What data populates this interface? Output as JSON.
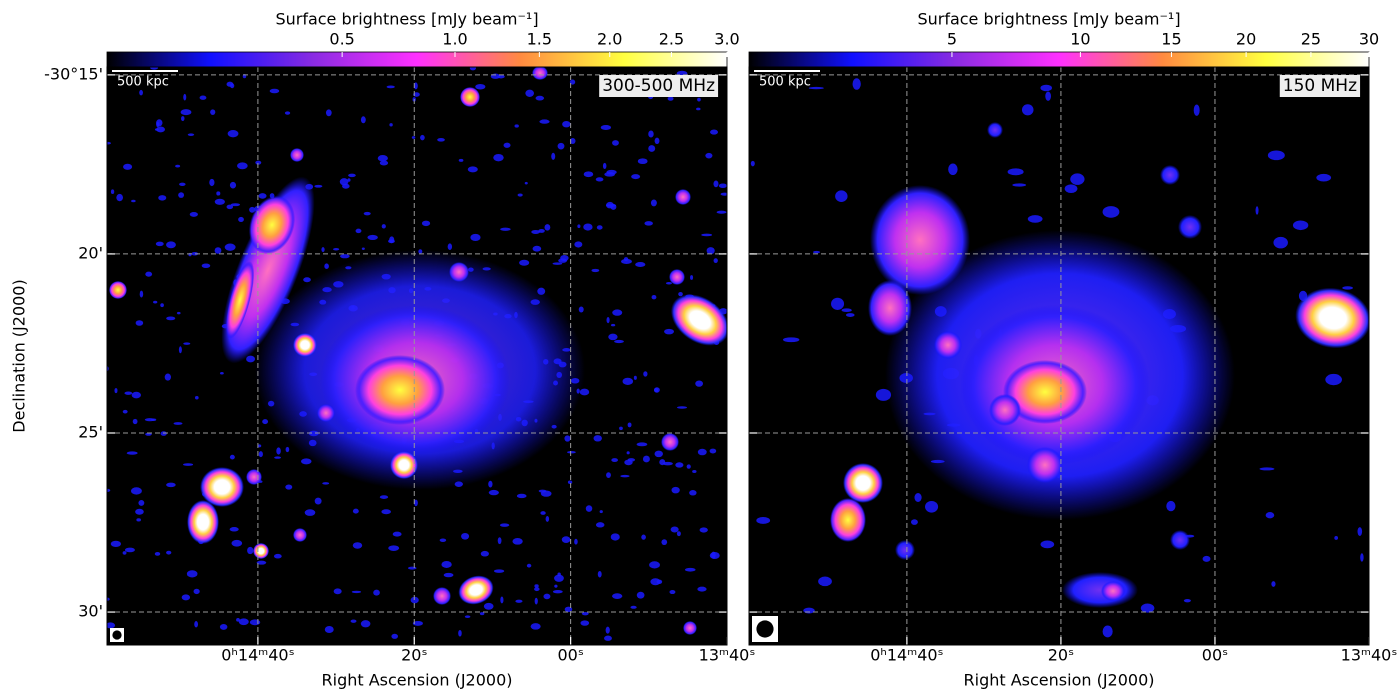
{
  "chart_data": [
    {
      "type": "image",
      "title": "Surface brightness [mJy beam⁻¹]",
      "annotation": "300-500 MHz",
      "scalebar": "500 kpc",
      "colormap": [
        "#000000",
        "#1010ff",
        "#8a2be2",
        "#ff30ff",
        "#ff8a40",
        "#ffff40",
        "#ffffff"
      ],
      "stretch": "sqrt",
      "clim": [
        0.08,
        3
      ],
      "cticks": [
        {
          "value": 0.5,
          "label": "0.5"
        },
        {
          "value": 1,
          "label": "1.0"
        },
        {
          "value": 1.5,
          "label": "1.5"
        },
        {
          "value": 2,
          "label": "2.0"
        },
        {
          "value": 2.5,
          "label": "2.5"
        },
        {
          "value": 3,
          "label": "3.0"
        }
      ],
      "xlabel": "Right Ascension (J2000)",
      "xlim": [
        899.3,
        820
      ],
      "xticks": [
        {
          "value": 880,
          "label": "0ʰ14ᵐ40ˢ"
        },
        {
          "value": 860,
          "label": "20ˢ"
        },
        {
          "value": 840,
          "label": "00ˢ"
        },
        {
          "value": 820,
          "label": "13ᵐ40ˢ"
        }
      ],
      "ylabel": "Declination (J2000)",
      "ylim": [
        -1814.78,
        -1830.92
      ],
      "yticks": [
        {
          "value": -1815,
          "label": "-30°15'"
        },
        {
          "value": -1820,
          "label": "20'"
        },
        {
          "value": -1825,
          "label": "25'"
        },
        {
          "value": -1830,
          "label": "30'"
        }
      ],
      "grid": true
    },
    {
      "type": "image",
      "title": "Surface brightness [mJy beam⁻¹]",
      "annotation": "150 MHz",
      "scalebar": "500 kpc",
      "colormap": [
        "#000000",
        "#1010ff",
        "#8a2be2",
        "#ff30ff",
        "#ff8a40",
        "#ffff40",
        "#ffffff"
      ],
      "stretch": "sqrt",
      "clim": [
        2,
        30
      ],
      "cticks": [
        5,
        10,
        15,
        20,
        25,
        30
      ],
      "xlabel": "Right Ascension (J2000)",
      "xlim": [
        900.5,
        820
      ],
      "xticks": [
        {
          "value": 880,
          "label": "0ʰ14ᵐ40ˢ"
        },
        {
          "value": 860,
          "label": "20ˢ"
        },
        {
          "value": 840,
          "label": "00ˢ"
        },
        {
          "value": 820,
          "label": "13ᵐ40ˢ"
        }
      ],
      "ylim": [
        -1814.78,
        -1830.92
      ],
      "grid": true
    }
  ]
}
